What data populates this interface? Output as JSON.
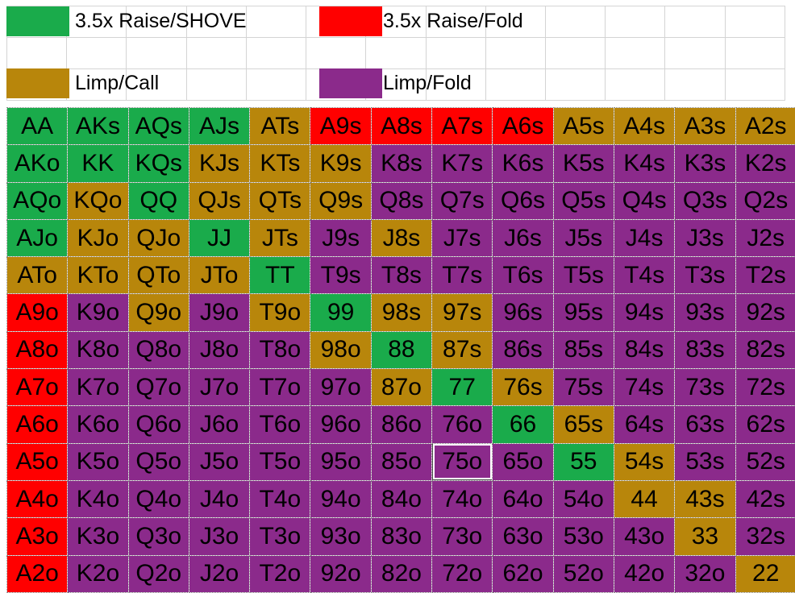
{
  "legend": {
    "items": [
      {
        "label": "3.5x Raise/SHOVE",
        "color": "#1aab4b"
      },
      {
        "label": "3.5x Raise/Fold",
        "color": "#ff0000"
      },
      {
        "label": "Limp/Call",
        "color": "#b8860b"
      },
      {
        "label": "Limp/Fold",
        "color": "#8b2a8b"
      }
    ]
  },
  "colors": {
    "G": "#1aab4b",
    "R": "#ff0000",
    "B": "#b8860b",
    "P": "#8b2a8b"
  },
  "grid": {
    "rows": [
      [
        "AA",
        "AKs",
        "AQs",
        "AJs",
        "ATs",
        "A9s",
        "A8s",
        "A7s",
        "A6s",
        "A5s",
        "A4s",
        "A3s",
        "A2s"
      ],
      [
        "AKo",
        "KK",
        "KQs",
        "KJs",
        "KTs",
        "K9s",
        "K8s",
        "K7s",
        "K6s",
        "K5s",
        "K4s",
        "K3s",
        "K2s"
      ],
      [
        "AQo",
        "KQo",
        "QQ",
        "QJs",
        "QTs",
        "Q9s",
        "Q8s",
        "Q7s",
        "Q6s",
        "Q5s",
        "Q4s",
        "Q3s",
        "Q2s"
      ],
      [
        "AJo",
        "KJo",
        "QJo",
        "JJ",
        "JTs",
        "J9s",
        "J8s",
        "J7s",
        "J6s",
        "J5s",
        "J4s",
        "J3s",
        "J2s"
      ],
      [
        "ATo",
        "KTo",
        "QTo",
        "JTo",
        "TT",
        "T9s",
        "T8s",
        "T7s",
        "T6s",
        "T5s",
        "T4s",
        "T3s",
        "T2s"
      ],
      [
        "A9o",
        "K9o",
        "Q9o",
        "J9o",
        "T9o",
        "99",
        "98s",
        "97s",
        "96s",
        "95s",
        "94s",
        "93s",
        "92s"
      ],
      [
        "A8o",
        "K8o",
        "Q8o",
        "J8o",
        "T8o",
        "98o",
        "88",
        "87s",
        "86s",
        "85s",
        "84s",
        "83s",
        "82s"
      ],
      [
        "A7o",
        "K7o",
        "Q7o",
        "J7o",
        "T7o",
        "97o",
        "87o",
        "77",
        "76s",
        "75s",
        "74s",
        "73s",
        "72s"
      ],
      [
        "A6o",
        "K6o",
        "Q6o",
        "J6o",
        "T6o",
        "96o",
        "86o",
        "76o",
        "66",
        "65s",
        "64s",
        "63s",
        "62s"
      ],
      [
        "A5o",
        "K5o",
        "Q5o",
        "J5o",
        "T5o",
        "95o",
        "85o",
        "75o",
        "65o",
        "55",
        "54s",
        "53s",
        "52s"
      ],
      [
        "A4o",
        "K4o",
        "Q4o",
        "J4o",
        "T4o",
        "94o",
        "84o",
        "74o",
        "64o",
        "54o",
        "44",
        "43s",
        "42s"
      ],
      [
        "A3o",
        "K3o",
        "Q3o",
        "J3o",
        "T3o",
        "93o",
        "83o",
        "73o",
        "63o",
        "53o",
        "43o",
        "33",
        "32s"
      ],
      [
        "A2o",
        "K2o",
        "Q2o",
        "J2o",
        "T2o",
        "92o",
        "82o",
        "72o",
        "62o",
        "52o",
        "42o",
        "32o",
        "22"
      ]
    ],
    "actions": [
      [
        "G",
        "G",
        "G",
        "G",
        "B",
        "R",
        "R",
        "R",
        "R",
        "B",
        "B",
        "B",
        "B"
      ],
      [
        "G",
        "G",
        "G",
        "B",
        "B",
        "B",
        "P",
        "P",
        "P",
        "P",
        "P",
        "P",
        "P"
      ],
      [
        "G",
        "B",
        "G",
        "B",
        "B",
        "B",
        "P",
        "P",
        "P",
        "P",
        "P",
        "P",
        "P"
      ],
      [
        "G",
        "B",
        "B",
        "G",
        "B",
        "P",
        "B",
        "P",
        "P",
        "P",
        "P",
        "P",
        "P"
      ],
      [
        "B",
        "B",
        "B",
        "B",
        "G",
        "P",
        "P",
        "P",
        "P",
        "P",
        "P",
        "P",
        "P"
      ],
      [
        "R",
        "P",
        "B",
        "P",
        "B",
        "G",
        "B",
        "B",
        "P",
        "P",
        "P",
        "P",
        "P"
      ],
      [
        "R",
        "P",
        "P",
        "P",
        "P",
        "B",
        "G",
        "B",
        "P",
        "P",
        "P",
        "P",
        "P"
      ],
      [
        "R",
        "P",
        "P",
        "P",
        "P",
        "P",
        "B",
        "G",
        "B",
        "P",
        "P",
        "P",
        "P"
      ],
      [
        "R",
        "P",
        "P",
        "P",
        "P",
        "P",
        "P",
        "P",
        "G",
        "B",
        "P",
        "P",
        "P"
      ],
      [
        "R",
        "P",
        "P",
        "P",
        "P",
        "P",
        "P",
        "P",
        "P",
        "G",
        "B",
        "P",
        "P"
      ],
      [
        "R",
        "P",
        "P",
        "P",
        "P",
        "P",
        "P",
        "P",
        "P",
        "P",
        "B",
        "B",
        "P"
      ],
      [
        "R",
        "P",
        "P",
        "P",
        "P",
        "P",
        "P",
        "P",
        "P",
        "P",
        "P",
        "B",
        "P"
      ],
      [
        "R",
        "P",
        "P",
        "P",
        "P",
        "P",
        "P",
        "P",
        "P",
        "P",
        "P",
        "P",
        "B"
      ]
    ],
    "selected_cell": "75o"
  }
}
